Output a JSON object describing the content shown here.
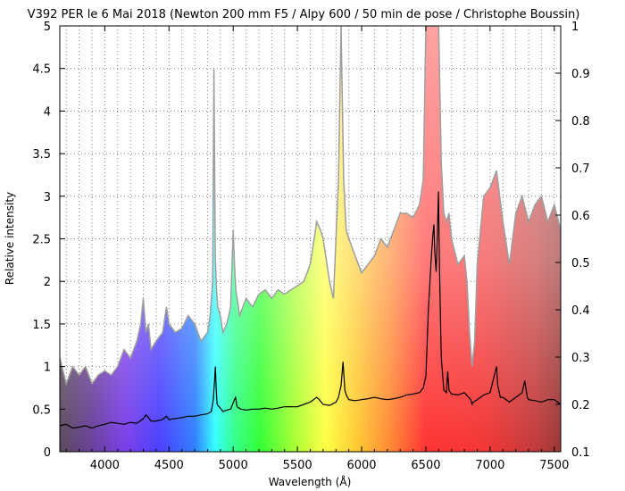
{
  "chart_data": {
    "type": "area",
    "title": "V392 PER le 6 Mai 2018 (Newton 200 mm F5 / Alpy 600 / 50 min de pose / Christophe Boussin)",
    "xlabel": "Wavelength (Å)",
    "ylabel": "Relative intensity",
    "xlim": [
      3650,
      7550
    ],
    "ylim": [
      0,
      5
    ],
    "y2lim": [
      0.1,
      1
    ],
    "grid": true,
    "x_ticks": [
      "4000",
      "4500",
      "5000",
      "5500",
      "6000",
      "6500",
      "7000",
      "7500"
    ],
    "y_ticks": [
      "0",
      "0.5",
      "1",
      "1.5",
      "2",
      "2.5",
      "3",
      "3.5",
      "4",
      "4.5",
      "5"
    ],
    "y2_ticks": [
      "0.1",
      "0.2",
      "0.3",
      "0.4",
      "0.5",
      "0.6",
      "0.7",
      "0.8",
      "0.9",
      "1"
    ],
    "series": [
      {
        "color": "#9e9e9e",
        "axis": "y",
        "fill": "spectrum",
        "x": [
          3650,
          3700,
          3750,
          3800,
          3850,
          3900,
          3950,
          4000,
          4050,
          4100,
          4150,
          4200,
          4250,
          4280,
          4300,
          4320,
          4340,
          4360,
          4400,
          4450,
          4480,
          4500,
          4550,
          4600,
          4650,
          4700,
          4750,
          4800,
          4820,
          4840,
          4850,
          4860,
          4870,
          4880,
          4900,
          4920,
          4950,
          4980,
          5000,
          5010,
          5020,
          5050,
          5100,
          5150,
          5200,
          5250,
          5300,
          5350,
          5400,
          5450,
          5500,
          5550,
          5600,
          5650,
          5680,
          5700,
          5750,
          5780,
          5800,
          5820,
          5840,
          5860,
          5870,
          5880,
          5900,
          5950,
          6000,
          6050,
          6100,
          6150,
          6200,
          6250,
          6300,
          6350,
          6400,
          6450,
          6480,
          6500,
          6520,
          6540,
          6560,
          6580,
          6600,
          6620,
          6640,
          6660,
          6680,
          6700,
          6750,
          6800,
          6820,
          6840,
          6860,
          6880,
          6900,
          6950,
          7000,
          7050,
          7100,
          7150,
          7200,
          7250,
          7300,
          7350,
          7400,
          7450,
          7500,
          7550
        ],
        "values": [
          1.1,
          0.8,
          1.0,
          0.9,
          1.0,
          0.8,
          0.9,
          0.95,
          0.9,
          1.0,
          1.2,
          1.1,
          1.3,
          1.5,
          1.8,
          1.4,
          1.5,
          1.2,
          1.3,
          1.4,
          1.7,
          1.5,
          1.4,
          1.45,
          1.6,
          1.5,
          1.3,
          1.4,
          1.6,
          2.0,
          4.5,
          2.3,
          1.9,
          1.7,
          1.6,
          1.4,
          1.5,
          1.7,
          2.6,
          2.2,
          1.9,
          1.6,
          1.8,
          1.7,
          1.85,
          1.9,
          1.8,
          1.9,
          1.85,
          1.9,
          1.95,
          2.0,
          2.2,
          2.7,
          2.6,
          2.5,
          2.0,
          1.8,
          2.5,
          3.2,
          5.0,
          3.2,
          2.9,
          2.6,
          2.5,
          2.3,
          2.1,
          2.2,
          2.3,
          2.5,
          2.4,
          2.6,
          2.8,
          2.8,
          2.75,
          2.9,
          3.2,
          5.0,
          5.0,
          5.0,
          5.0,
          5.0,
          5.0,
          3.4,
          2.8,
          2.7,
          2.8,
          2.5,
          2.2,
          2.3,
          2.0,
          1.4,
          1.0,
          1.3,
          2.2,
          3.0,
          3.1,
          3.3,
          2.7,
          2.2,
          2.8,
          3.0,
          2.7,
          2.9,
          3.0,
          2.7,
          2.9,
          2.6
        ]
      },
      {
        "color": "#000000",
        "axis": "y2",
        "x": [
          3650,
          3700,
          3750,
          3800,
          3850,
          3900,
          3950,
          4000,
          4050,
          4100,
          4150,
          4200,
          4250,
          4300,
          4320,
          4340,
          4360,
          4400,
          4450,
          4480,
          4500,
          4550,
          4600,
          4650,
          4700,
          4750,
          4800,
          4830,
          4845,
          4855,
          4861,
          4868,
          4875,
          4890,
          4920,
          4950,
          4980,
          5010,
          5018,
          5030,
          5060,
          5100,
          5150,
          5200,
          5250,
          5300,
          5350,
          5400,
          5450,
          5500,
          5550,
          5600,
          5650,
          5670,
          5700,
          5750,
          5800,
          5820,
          5840,
          5855,
          5862,
          5870,
          5880,
          5900,
          5950,
          6000,
          6050,
          6100,
          6150,
          6200,
          6250,
          6300,
          6350,
          6400,
          6450,
          6480,
          6500,
          6520,
          6540,
          6555,
          6563,
          6570,
          6580,
          6590,
          6598,
          6605,
          6620,
          6640,
          6660,
          6670,
          6680,
          6700,
          6750,
          6800,
          6850,
          6860,
          6870,
          6900,
          6950,
          7000,
          7050,
          7060,
          7080,
          7100,
          7150,
          7200,
          7250,
          7270,
          7290,
          7300,
          7350,
          7400,
          7450,
          7500,
          7550
        ],
        "values": [
          0.155,
          0.158,
          0.15,
          0.152,
          0.155,
          0.15,
          0.155,
          0.158,
          0.162,
          0.16,
          0.158,
          0.162,
          0.16,
          0.17,
          0.178,
          0.172,
          0.165,
          0.165,
          0.168,
          0.175,
          0.168,
          0.17,
          0.172,
          0.175,
          0.175,
          0.178,
          0.18,
          0.185,
          0.21,
          0.25,
          0.28,
          0.23,
          0.2,
          0.195,
          0.185,
          0.188,
          0.19,
          0.21,
          0.215,
          0.195,
          0.19,
          0.188,
          0.19,
          0.19,
          0.192,
          0.19,
          0.192,
          0.195,
          0.195,
          0.195,
          0.2,
          0.205,
          0.215,
          0.21,
          0.2,
          0.198,
          0.205,
          0.215,
          0.24,
          0.29,
          0.26,
          0.23,
          0.22,
          0.21,
          0.208,
          0.21,
          0.212,
          0.215,
          0.212,
          0.21,
          0.212,
          0.215,
          0.22,
          0.222,
          0.225,
          0.235,
          0.26,
          0.4,
          0.5,
          0.56,
          0.58,
          0.52,
          0.48,
          0.56,
          0.65,
          0.5,
          0.3,
          0.23,
          0.225,
          0.27,
          0.23,
          0.222,
          0.22,
          0.225,
          0.21,
          0.2,
          0.205,
          0.21,
          0.22,
          0.225,
          0.28,
          0.24,
          0.215,
          0.215,
          0.205,
          0.215,
          0.225,
          0.25,
          0.215,
          0.21,
          0.208,
          0.205,
          0.21,
          0.21,
          0.2
        ]
      }
    ]
  }
}
